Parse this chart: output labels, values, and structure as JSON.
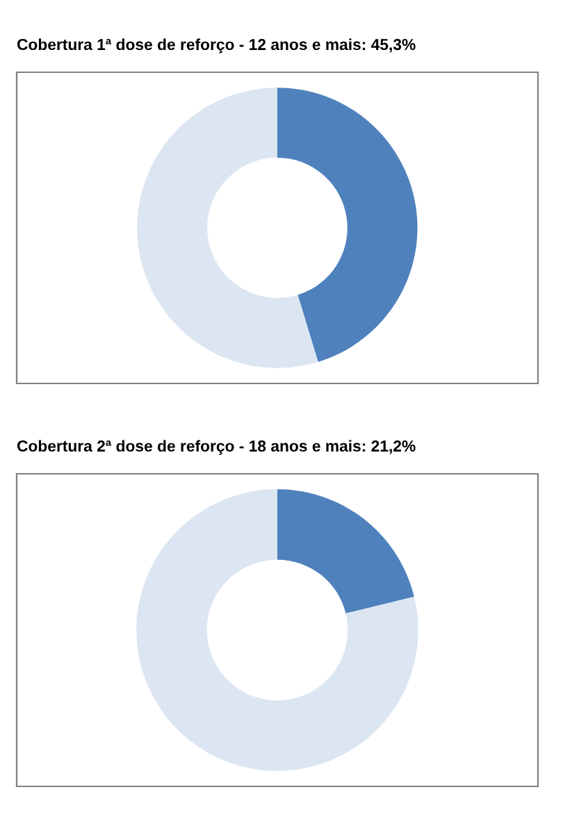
{
  "chart_data": [
    {
      "type": "donut",
      "title": "Cobertura 1ª dose de reforço - 12 anos e mais: 45,3%",
      "categories": [
        null,
        null
      ],
      "values": [
        45.3,
        54.7
      ],
      "colors": [
        "#4f81bd",
        "#dce6f2"
      ]
    },
    {
      "type": "donut",
      "title": "Cobertura 2ª dose de reforço - 18 anos e mais: 21,2%",
      "categories": [
        null,
        null
      ],
      "values": [
        21.2,
        78.8
      ],
      "colors": [
        "#4f81bd",
        "#dce6f2"
      ]
    }
  ]
}
